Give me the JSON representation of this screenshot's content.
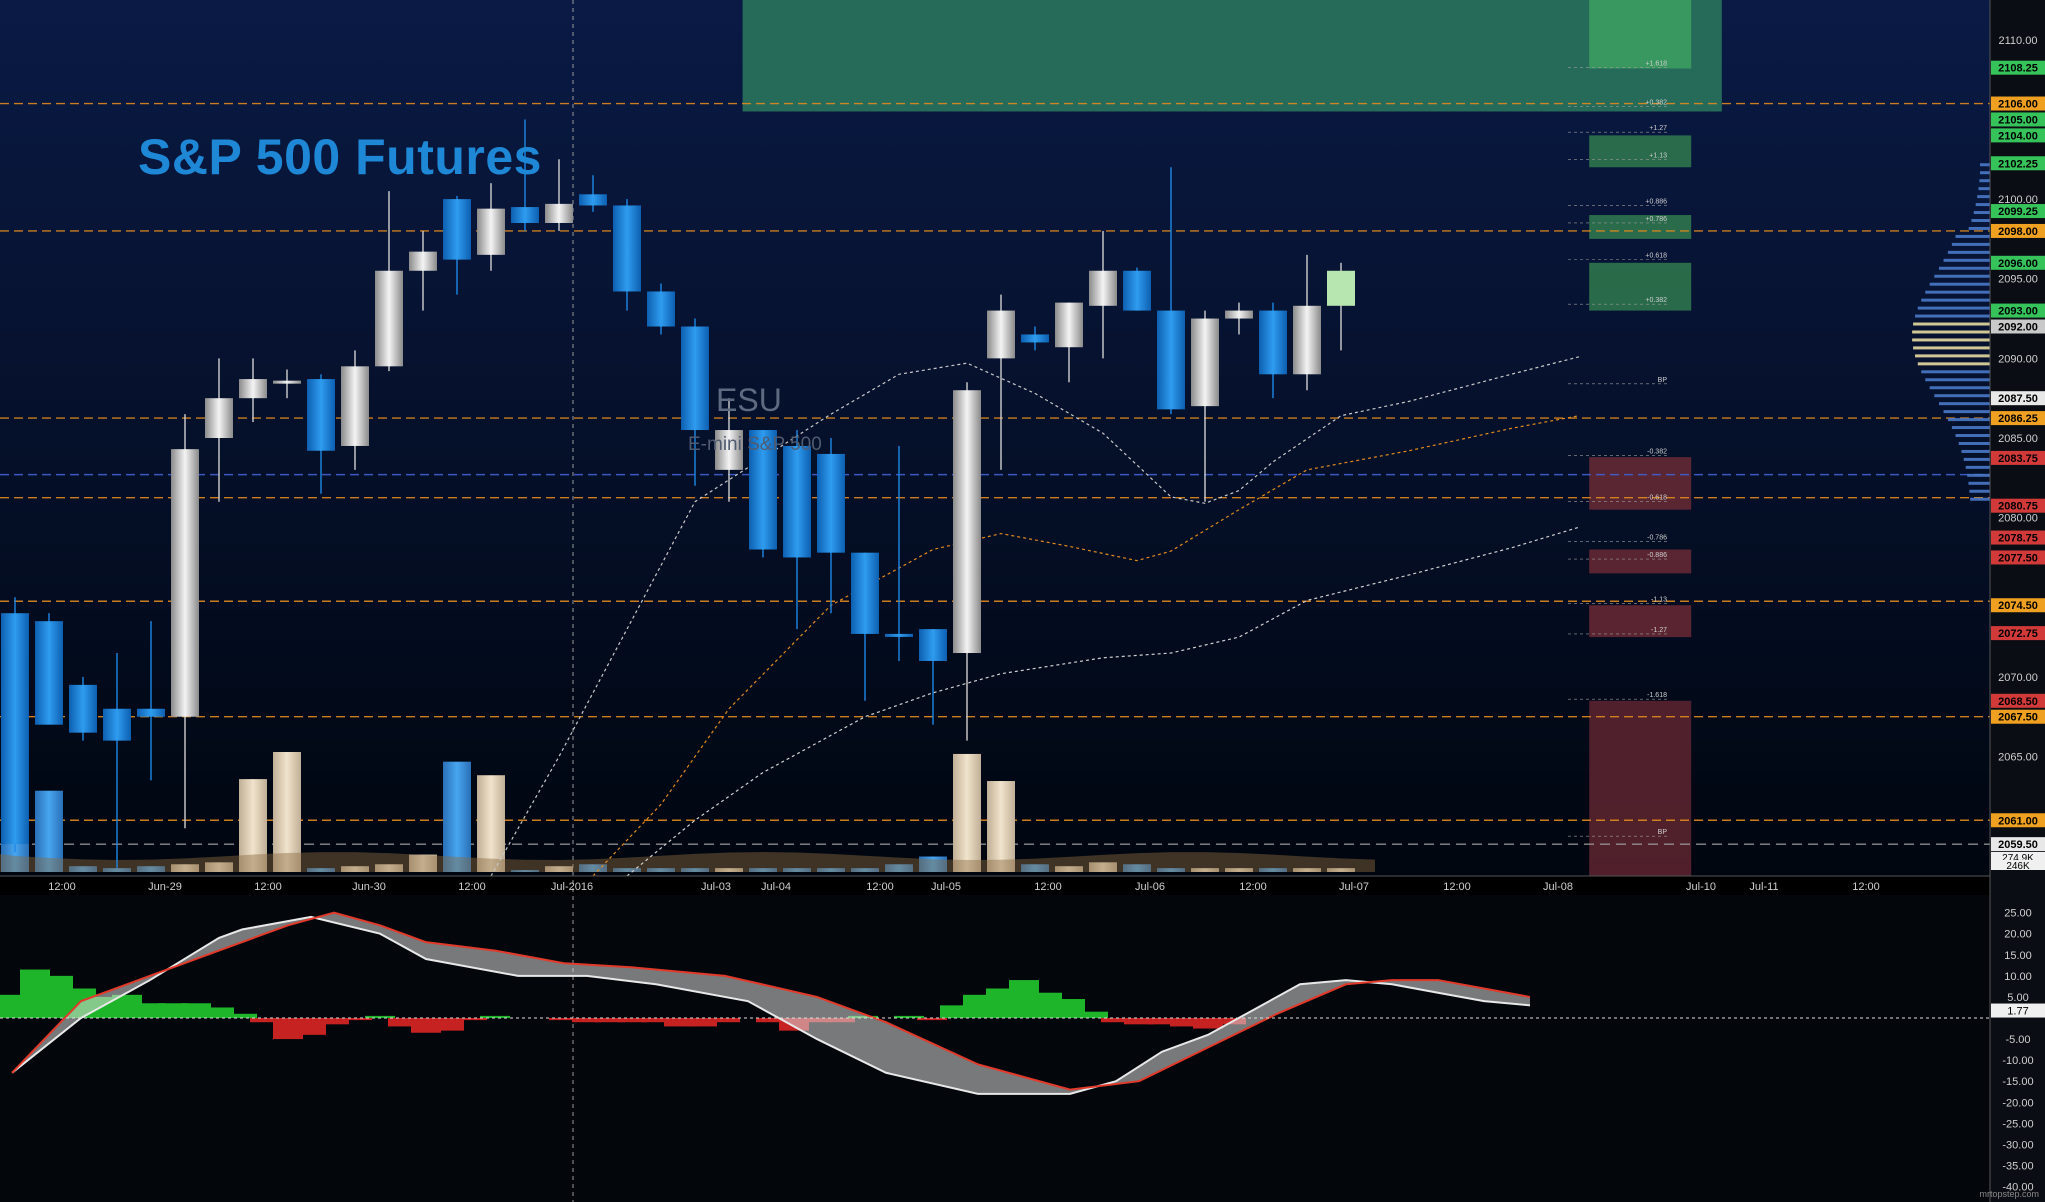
{
  "title": "S&P 500 Futures",
  "symbol": "ESU",
  "symbol_desc": "E-mini S&P 500",
  "watermark": "mrtopstep.com",
  "colors": {
    "bg_top": "#0a1a45",
    "bg_bottom": "#00060f",
    "up": "#e2e2e2",
    "down": "#1e88e5",
    "accent": "#1e88d6",
    "level": "#e08a1e",
    "macd_pos": "#1fb52a",
    "macd_neg": "#c62222"
  },
  "chart_data": [
    {
      "type": "candlestick",
      "title": "S&P 500 Futures",
      "ylim": [
        2057.5,
        2112.5
      ],
      "y_ticks": [
        2065.0,
        2070.0,
        2080.0,
        2085.0,
        2090.0,
        2095.0,
        2100.0,
        2110.0
      ],
      "x_tick_labels": [
        "12:00",
        "Jun-29",
        "12:00",
        "Jun-30",
        "12:00",
        "Jul-2016",
        "Jul-03",
        "Jul-04",
        "12:00",
        "Jul-05",
        "12:00",
        "Jul-06",
        "12:00",
        "Jul-07",
        "12:00",
        "Jul-08",
        "Jul-10",
        "Jul-11",
        "12:00"
      ],
      "candles": [
        {
          "o": 2074.0,
          "h": 2075.0,
          "l": 2059.0,
          "c": 2059.5
        },
        {
          "o": 2073.5,
          "h": 2074.0,
          "l": 2067.5,
          "c": 2067.0
        },
        {
          "o": 2069.5,
          "h": 2070.0,
          "l": 2066.0,
          "c": 2066.5
        },
        {
          "o": 2068.0,
          "h": 2071.5,
          "l": 2058.0,
          "c": 2066.0
        },
        {
          "o": 2068.0,
          "h": 2073.5,
          "l": 2063.5,
          "c": 2067.5
        },
        {
          "o": 2067.5,
          "h": 2086.5,
          "l": 2060.5,
          "c": 2084.3
        },
        {
          "o": 2085.0,
          "h": 2090.0,
          "l": 2081.0,
          "c": 2087.5
        },
        {
          "o": 2087.5,
          "h": 2090.0,
          "l": 2086.0,
          "c": 2088.7
        },
        {
          "o": 2088.5,
          "h": 2089.3,
          "l": 2087.5,
          "c": 2088.6
        },
        {
          "o": 2088.7,
          "h": 2089.0,
          "l": 2081.5,
          "c": 2084.2
        },
        {
          "o": 2084.5,
          "h": 2090.5,
          "l": 2083.0,
          "c": 2089.5
        },
        {
          "o": 2089.5,
          "h": 2100.5,
          "l": 2089.2,
          "c": 2095.5
        },
        {
          "o": 2095.5,
          "h": 2098.0,
          "l": 2093.0,
          "c": 2096.7
        },
        {
          "o": 2100.0,
          "h": 2100.2,
          "l": 2094.0,
          "c": 2096.2
        },
        {
          "o": 2096.5,
          "h": 2101.0,
          "l": 2095.5,
          "c": 2099.4
        },
        {
          "o": 2099.5,
          "h": 2105.0,
          "l": 2098.0,
          "c": 2098.5
        },
        {
          "o": 2098.5,
          "h": 2102.5,
          "l": 2098.0,
          "c": 2099.7
        },
        {
          "o": 2100.3,
          "h": 2101.5,
          "l": 2099.2,
          "c": 2099.6
        },
        {
          "o": 2099.6,
          "h": 2100.0,
          "l": 2093.0,
          "c": 2094.2
        },
        {
          "o": 2094.2,
          "h": 2094.7,
          "l": 2091.5,
          "c": 2092.0
        },
        {
          "o": 2092.0,
          "h": 2092.5,
          "l": 2082.0,
          "c": 2085.5
        },
        {
          "o": 2083.0,
          "h": 2087.5,
          "l": 2081.0,
          "c": 2085.5
        },
        {
          "o": 2085.5,
          "h": 2085.5,
          "l": 2077.5,
          "c": 2078.0
        },
        {
          "o": 2084.5,
          "h": 2085.5,
          "l": 2073.0,
          "c": 2077.5
        },
        {
          "o": 2084.0,
          "h": 2085.0,
          "l": 2074.0,
          "c": 2077.8
        },
        {
          "o": 2077.8,
          "h": 2077.8,
          "l": 2068.5,
          "c": 2072.7
        },
        {
          "o": 2072.7,
          "h": 2084.5,
          "l": 2071.0,
          "c": 2072.6
        },
        {
          "o": 2073.0,
          "h": 2073.0,
          "l": 2067.0,
          "c": 2071.0
        },
        {
          "o": 2071.5,
          "h": 2088.5,
          "l": 2066.0,
          "c": 2088.0
        },
        {
          "o": 2090.0,
          "h": 2094.0,
          "l": 2083.0,
          "c": 2093.0
        },
        {
          "o": 2091.5,
          "h": 2092.0,
          "l": 2090.5,
          "c": 2091.0
        },
        {
          "o": 2090.7,
          "h": 2093.5,
          "l": 2088.5,
          "c": 2093.5
        },
        {
          "o": 2093.3,
          "h": 2098.0,
          "l": 2090.0,
          "c": 2095.5
        },
        {
          "o": 2095.5,
          "h": 2095.7,
          "l": 2093.0,
          "c": 2093.0
        },
        {
          "o": 2093.0,
          "h": 2102.0,
          "l": 2086.5,
          "c": 2086.8
        },
        {
          "o": 2087.0,
          "h": 2093.0,
          "l": 2081.0,
          "c": 2092.5
        },
        {
          "o": 2092.5,
          "h": 2093.5,
          "l": 2091.5,
          "c": 2093.0
        },
        {
          "o": 2093.0,
          "h": 2093.5,
          "l": 2087.5,
          "c": 2089.0
        },
        {
          "o": 2089.0,
          "h": 2096.5,
          "l": 2088.0,
          "c": 2093.3
        },
        {
          "o": 2093.3,
          "h": 2096.0,
          "l": 2090.5,
          "c": 2095.5
        }
      ],
      "volume": [
        0.55,
        0.42,
        0.03,
        0.02,
        0.03,
        0.04,
        0.05,
        0.48,
        0.62,
        0.02,
        0.03,
        0.04,
        0.09,
        0.57,
        0.5,
        0.01,
        0.03,
        0.04,
        0.02,
        0.02,
        0.02,
        0.02,
        0.02,
        0.02,
        0.02,
        0.02,
        0.04,
        0.08,
        0.61,
        0.47,
        0.04,
        0.03,
        0.05,
        0.04,
        0.02,
        0.02,
        0.02,
        0.02,
        0.02,
        0.02
      ],
      "indicator_lines": [
        {
          "name": "ma_fast",
          "color": "#c8c8c8",
          "dash": "3,3",
          "points": [
            [
              14,
              2057.5
            ],
            [
              16,
              2065
            ],
            [
              20,
              2081
            ],
            [
              24,
              2086.5
            ],
            [
              26,
              2089
            ],
            [
              28,
              2089.7
            ],
            [
              30,
              2087.8
            ],
            [
              32,
              2085.3
            ],
            [
              34,
              2081.3
            ],
            [
              35,
              2080.9
            ],
            [
              36,
              2081.7
            ],
            [
              37,
              2083.5
            ],
            [
              39,
              2086.4
            ],
            [
              41,
              2087.3
            ],
            [
              44,
              2089
            ],
            [
              46,
              2090.1
            ]
          ]
        },
        {
          "name": "ma_mid",
          "color": "#e08a1e",
          "dash": "3,3",
          "points": [
            [
              17,
              2057.5
            ],
            [
              19,
              2062
            ],
            [
              21,
              2068
            ],
            [
              24,
              2074.5
            ],
            [
              27,
              2078
            ],
            [
              29,
              2079
            ],
            [
              31,
              2078.2
            ],
            [
              33,
              2077.3
            ],
            [
              34,
              2077.9
            ],
            [
              36,
              2080.5
            ],
            [
              38,
              2083
            ],
            [
              41,
              2084.2
            ],
            [
              44,
              2085.6
            ],
            [
              46,
              2086.4
            ]
          ]
        },
        {
          "name": "ma_slow",
          "color": "#d0d0d0",
          "dash": "3,3",
          "points": [
            [
              18,
              2057.5
            ],
            [
              20,
              2061
            ],
            [
              22,
              2064
            ],
            [
              25,
              2067.5
            ],
            [
              27,
              2069
            ],
            [
              29,
              2070.2
            ],
            [
              32,
              2071.2
            ],
            [
              34,
              2071.5
            ],
            [
              36,
              2072.5
            ],
            [
              38,
              2074.8
            ],
            [
              41,
              2076.4
            ],
            [
              44,
              2078.1
            ],
            [
              46,
              2079.4
            ]
          ]
        }
      ],
      "levels": [
        {
          "price": 2106.0,
          "label": "2106.00",
          "color": "#e08a1e",
          "type": "line"
        },
        {
          "price": 2098.0,
          "label": "2098.00",
          "color": "#e08a1e",
          "type": "line"
        },
        {
          "price": 2086.25,
          "label": "2086.25",
          "color": "#e08a1e",
          "type": "line"
        },
        {
          "price": 2081.25,
          "label": "2081.25",
          "color": "#e08a1e",
          "type": "line"
        },
        {
          "price": 2074.75,
          "label": "2074.75",
          "color": "#e08a1e",
          "type": "line"
        },
        {
          "price": 2067.5,
          "label": "2067.50",
          "color": "#e08a1e",
          "type": "line"
        },
        {
          "price": 2061.0,
          "label": "2061.00",
          "color": "#e08a1e",
          "type": "line"
        },
        {
          "price": 2082.7,
          "label": "",
          "color": "#4060d0",
          "type": "line"
        },
        {
          "price": 2059.5,
          "label": "2059.50",
          "color": "#9a9a9a",
          "type": "dash"
        }
      ],
      "price_badges": [
        {
          "price": 2108.25,
          "label": "2108.25",
          "color": "#35c35a"
        },
        {
          "price": 2105.0,
          "label": "2105.00",
          "color": "#35c35a"
        },
        {
          "price": 2104.0,
          "label": "2104.00",
          "color": "#35c35a"
        },
        {
          "price": 2102.25,
          "label": "2102.25",
          "color": "#35c35a"
        },
        {
          "price": 2099.25,
          "label": "2099.25",
          "color": "#35c35a"
        },
        {
          "price": 2096.0,
          "label": "2096.00",
          "color": "#35c35a"
        },
        {
          "price": 2093.0,
          "label": "2093.00",
          "color": "#35c35a"
        },
        {
          "price": 2092.0,
          "label": "2092.00",
          "color": "#c9c9c9"
        },
        {
          "price": 2087.5,
          "label": "2087.50",
          "color": "#e8e8e8"
        },
        {
          "price": 2083.75,
          "label": "2083.75",
          "color": "#d23a3a"
        },
        {
          "price": 2080.75,
          "label": "2080.75",
          "color": "#d23a3a"
        },
        {
          "price": 2078.75,
          "label": "2078.75",
          "color": "#d23a3a"
        },
        {
          "price": 2077.5,
          "label": "2077.50",
          "color": "#d23a3a"
        },
        {
          "price": 2072.75,
          "label": "2072.75",
          "color": "#d23a3a"
        },
        {
          "price": 2068.5,
          "label": "2068.50",
          "color": "#d23a3a"
        },
        {
          "price": 2106.0,
          "label": "2106.00",
          "color": "#f0a020"
        },
        {
          "price": 2098.0,
          "label": "2098.00",
          "color": "#f0a020"
        },
        {
          "price": 2086.25,
          "label": "2086.25",
          "color": "#f0a020"
        },
        {
          "price": 2074.5,
          "label": "2074.50",
          "color": "#f0a020"
        },
        {
          "price": 2067.5,
          "label": "2067.50",
          "color": "#f0a020"
        },
        {
          "price": 2061.0,
          "label": "2061.00",
          "color": "#f0a020"
        },
        {
          "price": 2059.5,
          "label": "2059.50",
          "color": "#e8e8e8"
        }
      ],
      "zones": [
        {
          "from": 2105.5,
          "to": 2112.5,
          "start": 21.4,
          "end": 50.2,
          "color": "#2c7a5e"
        },
        {
          "from": 2108.2,
          "to": 2112.5,
          "start": 46.3,
          "end": 49.3,
          "color": "#3da060"
        },
        {
          "from": 2102.0,
          "to": 2104.0,
          "start": 46.3,
          "end": 49.3,
          "color": "#2f7a4e"
        },
        {
          "from": 2097.5,
          "to": 2099.0,
          "start": 46.3,
          "end": 49.3,
          "color": "#2f7a4e"
        },
        {
          "from": 2093.0,
          "to": 2096.0,
          "start": 46.3,
          "end": 49.3,
          "color": "#2f7a4e"
        },
        {
          "from": 2080.5,
          "to": 2083.8,
          "start": 46.3,
          "end": 49.3,
          "color": "#6a2a35"
        },
        {
          "from": 2076.5,
          "to": 2078.0,
          "start": 46.3,
          "end": 49.3,
          "color": "#6a2a35"
        },
        {
          "from": 2072.5,
          "to": 2074.5,
          "start": 46.3,
          "end": 49.3,
          "color": "#6a2a35"
        },
        {
          "from": 2057.5,
          "to": 2068.5,
          "start": 46.3,
          "end": 49.3,
          "color": "#5e2530"
        }
      ],
      "fib_labels": [
        {
          "price": 2108.25,
          "label": "+1.618"
        },
        {
          "price": 2105.8,
          "label": "+0.382"
        },
        {
          "price": 2104.2,
          "label": "+1.27"
        },
        {
          "price": 2102.5,
          "label": "+1.13"
        },
        {
          "price": 2099.6,
          "label": "+0.886"
        },
        {
          "price": 2098.5,
          "label": "+0.786"
        },
        {
          "price": 2096.2,
          "label": "+0.618"
        },
        {
          "price": 2093.4,
          "label": "+0.382"
        },
        {
          "price": 2088.4,
          "label": "BP"
        },
        {
          "price": 2083.9,
          "label": "-0.382"
        },
        {
          "price": 2081.0,
          "label": "-0.618"
        },
        {
          "price": 2078.5,
          "label": "-0.786"
        },
        {
          "price": 2077.4,
          "label": "-0.886"
        },
        {
          "price": 2074.6,
          "label": "-1.13"
        },
        {
          "price": 2072.7,
          "label": "-1.27"
        },
        {
          "price": 2068.6,
          "label": "-1.618"
        },
        {
          "price": 2060.0,
          "label": "BP"
        }
      ],
      "volume_badges": [
        "274.9K",
        "246K"
      ]
    },
    {
      "type": "bar",
      "title": "",
      "ylim": [
        -42,
        28
      ],
      "y_ticks": [
        25,
        20,
        15,
        10,
        5,
        -5,
        -10,
        -15,
        -20,
        -25,
        -30,
        -35,
        -40
      ],
      "current_value": "1.77",
      "histogram": [
        5.5,
        11.5,
        10,
        7,
        5,
        5.5,
        3.5,
        3.5,
        3.5,
        2.5,
        1,
        -1,
        -5,
        -4,
        -1.5,
        -0.5,
        0.5,
        -2,
        -3.5,
        -3,
        -0.5,
        0.5,
        0,
        0,
        -0.5,
        -1,
        -1,
        -1,
        -1,
        -2,
        -2,
        -1,
        0,
        -1,
        -3,
        -1,
        -1,
        0.5,
        0,
        0.5,
        -0.5,
        3,
        5.5,
        7,
        9,
        6,
        4.5,
        1.5,
        -1,
        -1.5,
        -1.5,
        -2,
        -2.5,
        -1.5
      ],
      "macd_line": [
        [
          0,
          -13
        ],
        [
          3,
          0
        ],
        [
          6,
          9
        ],
        [
          9,
          19
        ],
        [
          10,
          21
        ],
        [
          13,
          24
        ],
        [
          16,
          20
        ],
        [
          18,
          14
        ],
        [
          22,
          10
        ],
        [
          25,
          10
        ],
        [
          28,
          8
        ],
        [
          32,
          4
        ],
        [
          35,
          -5
        ],
        [
          38,
          -13
        ],
        [
          42,
          -18
        ],
        [
          46,
          -18
        ],
        [
          48,
          -15
        ],
        [
          50,
          -8
        ],
        [
          52,
          -4
        ],
        [
          54,
          2
        ],
        [
          56,
          8
        ],
        [
          58,
          9
        ],
        [
          60,
          8
        ],
        [
          62,
          6
        ],
        [
          64,
          4
        ],
        [
          66,
          3
        ]
      ],
      "signal_line": [
        [
          0,
          -13
        ],
        [
          3,
          4
        ],
        [
          6,
          10
        ],
        [
          9,
          16
        ],
        [
          12,
          22
        ],
        [
          14,
          25
        ],
        [
          16,
          22
        ],
        [
          18,
          18
        ],
        [
          21,
          16
        ],
        [
          24,
          13
        ],
        [
          27,
          12
        ],
        [
          31,
          10
        ],
        [
          35,
          5
        ],
        [
          38,
          -1
        ],
        [
          42,
          -11
        ],
        [
          46,
          -17
        ],
        [
          49,
          -15
        ],
        [
          52,
          -7
        ],
        [
          55,
          1
        ],
        [
          58,
          8
        ],
        [
          60,
          9
        ],
        [
          62,
          9
        ],
        [
          64,
          7
        ],
        [
          66,
          5
        ]
      ]
    }
  ]
}
